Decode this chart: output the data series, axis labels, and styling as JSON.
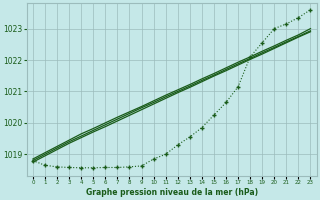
{
  "x": [
    0,
    1,
    2,
    3,
    4,
    5,
    6,
    7,
    8,
    9,
    10,
    11,
    12,
    13,
    14,
    15,
    16,
    17,
    18,
    19,
    20,
    21,
    22,
    23
  ],
  "line1": [
    1018.85,
    1019.05,
    1019.25,
    1019.45,
    1019.65,
    1019.82,
    1020.0,
    1020.18,
    1020.35,
    1020.52,
    1020.7,
    1020.88,
    1021.05,
    1021.22,
    1021.4,
    1021.57,
    1021.75,
    1021.93,
    1022.1,
    1022.28,
    1022.45,
    1022.63,
    1022.8,
    1023.0
  ],
  "line2": [
    1018.8,
    1019.0,
    1019.2,
    1019.4,
    1019.58,
    1019.76,
    1019.94,
    1020.12,
    1020.3,
    1020.48,
    1020.65,
    1020.83,
    1021.0,
    1021.17,
    1021.35,
    1021.52,
    1021.7,
    1021.88,
    1022.05,
    1022.23,
    1022.4,
    1022.58,
    1022.75,
    1022.93
  ],
  "line3": [
    1018.75,
    1018.95,
    1019.15,
    1019.35,
    1019.53,
    1019.71,
    1019.88,
    1020.06,
    1020.24,
    1020.42,
    1020.6,
    1020.78,
    1020.96,
    1021.13,
    1021.31,
    1021.49,
    1021.66,
    1021.84,
    1022.02,
    1022.19,
    1022.37,
    1022.55,
    1022.73,
    1022.9
  ],
  "dots_x": [
    0,
    1,
    2,
    3,
    4,
    5,
    6,
    7,
    8,
    9,
    10,
    11,
    12,
    13,
    14,
    15,
    16,
    17,
    18,
    19,
    20,
    21,
    22,
    23
  ],
  "dots_y": [
    1018.8,
    1018.65,
    1018.6,
    1018.58,
    1018.57,
    1018.57,
    1018.58,
    1018.58,
    1018.6,
    1018.63,
    1018.85,
    1019.0,
    1019.3,
    1019.55,
    1019.85,
    1020.25,
    1020.65,
    1021.15,
    1022.1,
    1022.55,
    1023.0,
    1023.15,
    1023.35,
    1023.6
  ],
  "line_color": "#1a5c1a",
  "bg_color": "#c5e8e8",
  "grid_color": "#9cbcbc",
  "text_color": "#1a5c1a",
  "ylabel_ticks": [
    1019,
    1020,
    1021,
    1022,
    1023
  ],
  "xlabel_ticks": [
    0,
    1,
    2,
    3,
    4,
    5,
    6,
    7,
    8,
    9,
    10,
    11,
    12,
    13,
    14,
    15,
    16,
    17,
    18,
    19,
    20,
    21,
    22,
    23
  ],
  "xlabel": "Graphe pression niveau de la mer (hPa)",
  "ylim": [
    1018.3,
    1023.8
  ],
  "xlim": [
    -0.5,
    23.5
  ]
}
